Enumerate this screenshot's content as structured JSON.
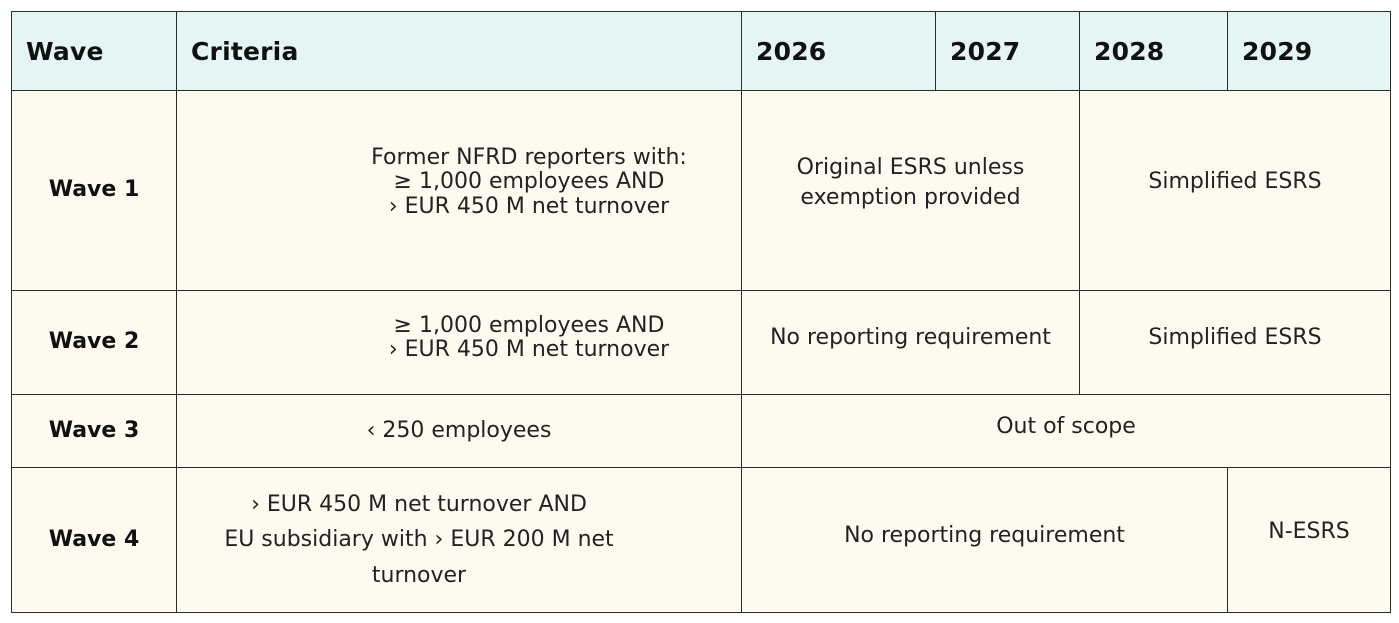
{
  "header": {
    "wave": "Wave",
    "criteria": "Criteria",
    "y2026": "2026",
    "y2027": "2027",
    "y2028": "2028",
    "y2029": "2029"
  },
  "rows": [
    {
      "wave": "Wave 1",
      "criteria": [
        "Former NFRD reporters with:",
        "≥ 1,000 employees AND",
        "› EUR 450 M net turnover"
      ],
      "cells": [
        "Original ESRS unless exemption provided",
        "Simplified ESRS"
      ]
    },
    {
      "wave": "Wave 2",
      "criteria": [
        "≥ 1,000 employees AND",
        "› EUR 450 M net turnover"
      ],
      "cells": [
        "No reporting requirement",
        "Simplified ESRS"
      ]
    },
    {
      "wave": "Wave 3",
      "criteria": [
        "‹ 250 employees"
      ],
      "cells": [
        "Out of scope"
      ]
    },
    {
      "wave": "Wave 4",
      "criteria": [
        "› EUR 450 M net turnover AND",
        "EU subsidiary with › EUR 200 M net",
        "turnover"
      ],
      "cells": [
        "No reporting requirement",
        "N-ESRS"
      ]
    }
  ]
}
